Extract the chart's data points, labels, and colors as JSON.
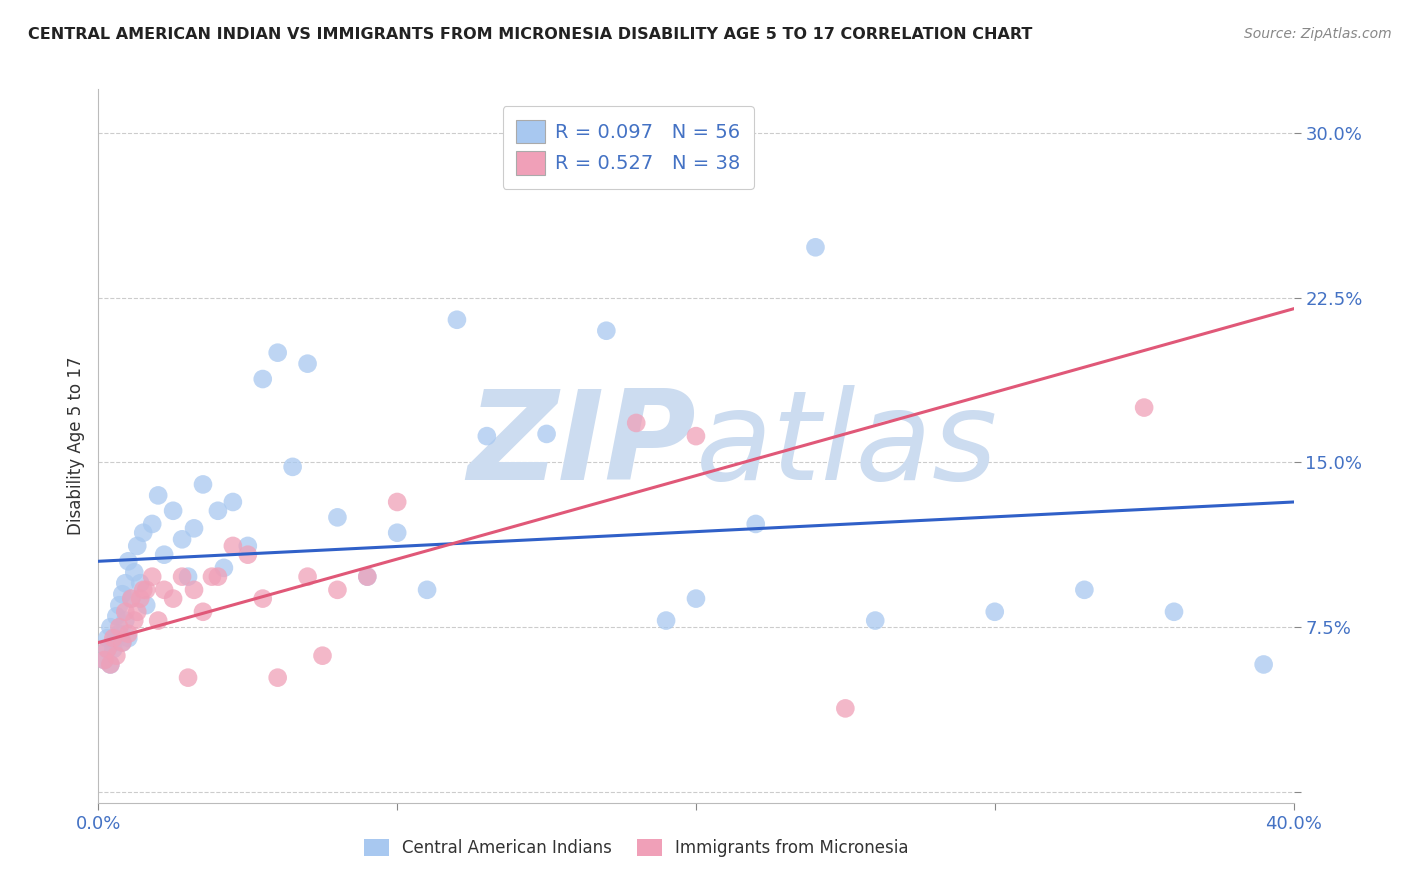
{
  "title": "CENTRAL AMERICAN INDIAN VS IMMIGRANTS FROM MICRONESIA DISABILITY AGE 5 TO 17 CORRELATION CHART",
  "source": "Source: ZipAtlas.com",
  "ylabel": "Disability Age 5 to 17",
  "ytick_labels": [
    "",
    "7.5%",
    "15.0%",
    "22.5%",
    "30.0%"
  ],
  "ytick_values": [
    0.0,
    0.075,
    0.15,
    0.225,
    0.3
  ],
  "xlim": [
    0.0,
    0.4
  ],
  "ylim": [
    -0.005,
    0.32
  ],
  "legend_r1": "R = 0.097",
  "legend_n1": "N = 56",
  "legend_r2": "R = 0.527",
  "legend_n2": "N = 38",
  "blue_color": "#a8c8f0",
  "pink_color": "#f0a0b8",
  "blue_line_color": "#3060c8",
  "pink_line_color": "#e05878",
  "watermark_color": "#ccdcf0",
  "blue_scatter_x": [
    0.002,
    0.003,
    0.003,
    0.004,
    0.004,
    0.005,
    0.005,
    0.006,
    0.006,
    0.007,
    0.007,
    0.008,
    0.008,
    0.009,
    0.009,
    0.01,
    0.01,
    0.011,
    0.012,
    0.013,
    0.014,
    0.015,
    0.016,
    0.018,
    0.02,
    0.022,
    0.025,
    0.028,
    0.03,
    0.032,
    0.035,
    0.04,
    0.042,
    0.045,
    0.05,
    0.055,
    0.06,
    0.065,
    0.07,
    0.08,
    0.09,
    0.1,
    0.11,
    0.12,
    0.13,
    0.15,
    0.17,
    0.19,
    0.2,
    0.22,
    0.24,
    0.26,
    0.3,
    0.33,
    0.36,
    0.39
  ],
  "blue_scatter_y": [
    0.06,
    0.065,
    0.07,
    0.058,
    0.075,
    0.065,
    0.068,
    0.07,
    0.08,
    0.072,
    0.085,
    0.068,
    0.09,
    0.078,
    0.095,
    0.07,
    0.105,
    0.088,
    0.1,
    0.112,
    0.095,
    0.118,
    0.085,
    0.122,
    0.135,
    0.108,
    0.128,
    0.115,
    0.098,
    0.12,
    0.14,
    0.128,
    0.102,
    0.132,
    0.112,
    0.188,
    0.2,
    0.148,
    0.195,
    0.125,
    0.098,
    0.118,
    0.092,
    0.215,
    0.162,
    0.163,
    0.21,
    0.078,
    0.088,
    0.122,
    0.248,
    0.078,
    0.082,
    0.092,
    0.082,
    0.058
  ],
  "pink_scatter_x": [
    0.002,
    0.003,
    0.004,
    0.005,
    0.006,
    0.007,
    0.008,
    0.009,
    0.01,
    0.011,
    0.012,
    0.013,
    0.014,
    0.015,
    0.016,
    0.018,
    0.02,
    0.022,
    0.025,
    0.028,
    0.03,
    0.032,
    0.035,
    0.038,
    0.04,
    0.045,
    0.05,
    0.055,
    0.06,
    0.07,
    0.075,
    0.08,
    0.09,
    0.1,
    0.18,
    0.2,
    0.25,
    0.35
  ],
  "pink_scatter_y": [
    0.06,
    0.065,
    0.058,
    0.07,
    0.062,
    0.075,
    0.068,
    0.082,
    0.072,
    0.088,
    0.078,
    0.082,
    0.088,
    0.092,
    0.092,
    0.098,
    0.078,
    0.092,
    0.088,
    0.098,
    0.052,
    0.092,
    0.082,
    0.098,
    0.098,
    0.112,
    0.108,
    0.088,
    0.052,
    0.098,
    0.062,
    0.092,
    0.098,
    0.132,
    0.168,
    0.162,
    0.038,
    0.175
  ],
  "blue_line_x": [
    0.0,
    0.4
  ],
  "blue_line_y": [
    0.105,
    0.132
  ],
  "pink_line_x": [
    0.0,
    0.4
  ],
  "pink_line_y": [
    0.068,
    0.22
  ]
}
